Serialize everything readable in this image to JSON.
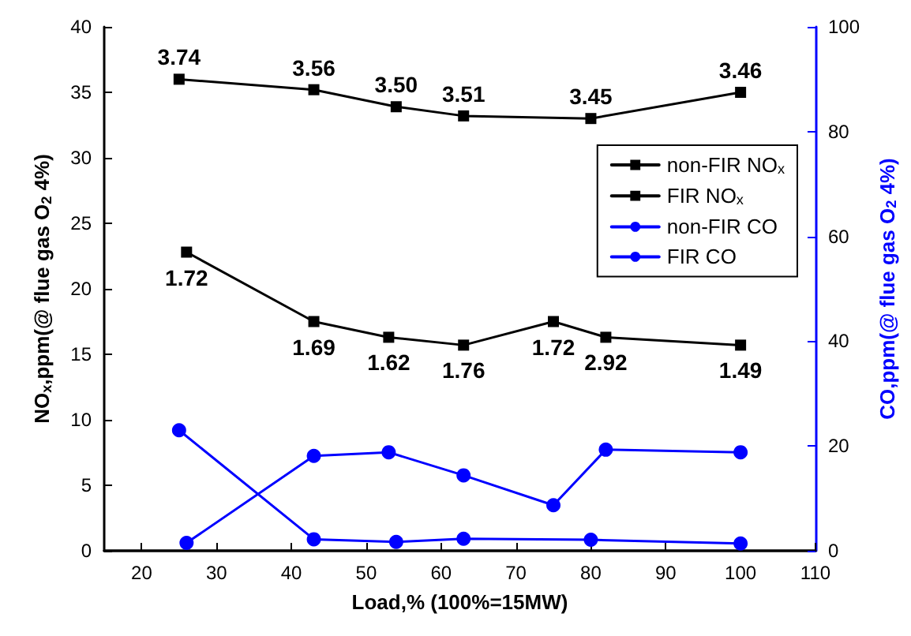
{
  "chart_data": {
    "type": "line",
    "xlabel": "Load,% (100%=15MW)",
    "ylabel": "NO$_{x}$,ppm(@ flue gas O$_{2}$ 4%)",
    "y2label": "CO,ppm(@ flue gas O$_{2}$ 4%)",
    "xlim": [
      15,
      110
    ],
    "xticks": [
      20,
      30,
      40,
      50,
      60,
      70,
      80,
      90,
      100,
      110
    ],
    "ylim": [
      0,
      40
    ],
    "yticks": [
      0,
      5,
      10,
      15,
      20,
      25,
      30,
      35,
      40
    ],
    "y2lim": [
      0,
      100
    ],
    "y2ticks": [
      0,
      20,
      40,
      60,
      80,
      100
    ],
    "annotations": [
      {
        "text": "3.74",
        "x": 25,
        "y": 36.0
      },
      {
        "text": "3.56",
        "x": 43,
        "y": 35.2
      },
      {
        "text": "3.50",
        "x": 54,
        "y": 33.9
      },
      {
        "text": "3.51",
        "x": 63,
        "y": 33.2
      },
      {
        "text": "3.45",
        "x": 80,
        "y": 33.0
      },
      {
        "text": "3.46",
        "x": 100,
        "y": 35.0
      },
      {
        "text": "1.72",
        "x": 26,
        "y": 22.8
      },
      {
        "text": "1.69",
        "x": 43,
        "y": 17.5
      },
      {
        "text": "1.62",
        "x": 53,
        "y": 16.3
      },
      {
        "text": "1.76",
        "x": 63,
        "y": 15.7
      },
      {
        "text": "1.72",
        "x": 75,
        "y": 17.5
      },
      {
        "text": "2.92",
        "x": 82,
        "y": 16.3
      },
      {
        "text": "1.49",
        "x": 100,
        "y": 15.7
      }
    ],
    "grid": false,
    "legend": "top right",
    "line_style": "solid",
    "series": [
      {
        "name": "non-FIR NO$_{x}$",
        "color": "#000000",
        "marker": "square",
        "x": [
          25,
          43,
          54,
          63,
          80,
          100
        ],
        "values": [
          36.0,
          35.2,
          33.9,
          33.2,
          33.0,
          35.0
        ]
      },
      {
        "name": "FIR NO$_{x}$",
        "color": "#000000",
        "marker": "square",
        "x": [
          26,
          43,
          53,
          63,
          75,
          82,
          100
        ],
        "values": [
          22.8,
          17.5,
          16.3,
          15.7,
          17.5,
          16.3,
          15.7
        ]
      },
      {
        "name": "non-FIR CO",
        "color": "#0000ff",
        "marker": "circle",
        "axis": "y2",
        "x": [
          25,
          43,
          54,
          63,
          80,
          100
        ],
        "values": [
          23.0,
          2.2,
          1.7,
          2.3,
          2.1,
          1.4
        ]
      },
      {
        "name": "FIR CO",
        "color": "#0000ff",
        "marker": "circle",
        "axis": "y2",
        "x": [
          26,
          43,
          53,
          63,
          75,
          82,
          100
        ],
        "values": [
          1.5,
          18.1,
          18.8,
          14.4,
          8.7,
          19.3,
          18.8
        ]
      }
    ]
  }
}
